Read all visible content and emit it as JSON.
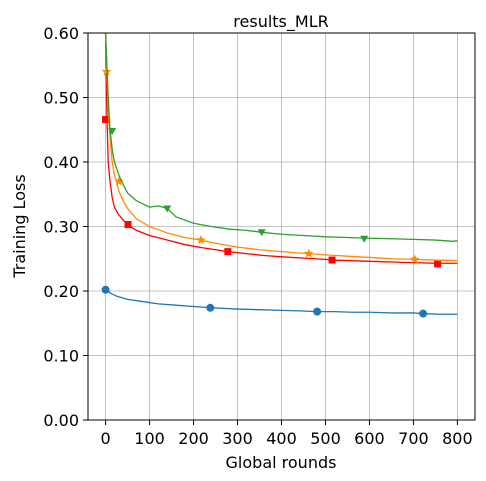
{
  "chart_data": {
    "type": "line",
    "title": "results_MLR",
    "xlabel": "Global rounds",
    "ylabel": "Training Loss",
    "xlim": [
      -40,
      840
    ],
    "ylim": [
      0.0,
      0.6
    ],
    "xticks": [
      0,
      100,
      200,
      300,
      400,
      500,
      600,
      700,
      800
    ],
    "yticks": [
      0.0,
      0.1,
      0.2,
      0.3,
      0.4,
      0.5,
      0.6
    ],
    "ytick_labels": [
      "0.00",
      "0.10",
      "0.20",
      "0.30",
      "0.40",
      "0.50",
      "0.60"
    ],
    "grid": true,
    "series": [
      {
        "color": "#1f77b4",
        "marker": "circle",
        "x": [
          0,
          10,
          25,
          50,
          80,
          120,
          160,
          200,
          240,
          300,
          350,
          400,
          450,
          480,
          520,
          560,
          600,
          650,
          700,
          720,
          760,
          800
        ],
        "y": [
          0.202,
          0.197,
          0.192,
          0.187,
          0.184,
          0.18,
          0.178,
          0.176,
          0.174,
          0.172,
          0.171,
          0.17,
          0.169,
          0.168,
          0.168,
          0.167,
          0.167,
          0.166,
          0.166,
          0.165,
          0.164,
          0.164
        ],
        "markers_x": [
          0,
          238,
          481,
          722
        ],
        "markers_y": [
          0.202,
          0.174,
          0.168,
          0.165
        ]
      },
      {
        "color": "#ff0000",
        "marker": "square",
        "x": [
          0,
          3,
          6,
          10,
          15,
          20,
          30,
          40,
          50,
          70,
          100,
          140,
          180,
          220,
          260,
          280,
          320,
          360,
          400,
          450,
          500,
          515,
          560,
          600,
          650,
          700,
          750,
          800
        ],
        "y": [
          0.6,
          0.47,
          0.4,
          0.37,
          0.345,
          0.33,
          0.318,
          0.31,
          0.303,
          0.294,
          0.286,
          0.279,
          0.272,
          0.267,
          0.263,
          0.261,
          0.258,
          0.255,
          0.253,
          0.251,
          0.249,
          0.248,
          0.247,
          0.246,
          0.245,
          0.244,
          0.243,
          0.243
        ],
        "markers_x": [
          0,
          51,
          278,
          515,
          755
        ],
        "markers_y": [
          0.466,
          0.303,
          0.261,
          0.248,
          0.242
        ]
      },
      {
        "color": "#ff8c00",
        "marker": "star",
        "x": [
          0,
          3,
          6,
          10,
          15,
          20,
          25,
          30,
          40,
          50,
          70,
          100,
          140,
          180,
          215,
          250,
          300,
          350,
          400,
          460,
          500,
          550,
          600,
          650,
          700,
          750,
          800
        ],
        "y": [
          0.6,
          0.54,
          0.48,
          0.44,
          0.4,
          0.38,
          0.37,
          0.355,
          0.34,
          0.328,
          0.312,
          0.3,
          0.29,
          0.283,
          0.279,
          0.274,
          0.268,
          0.264,
          0.261,
          0.258,
          0.256,
          0.254,
          0.252,
          0.25,
          0.249,
          0.248,
          0.247
        ],
        "markers_x": [
          2,
          30,
          217,
          462,
          703
        ],
        "markers_y": [
          0.54,
          0.37,
          0.279,
          0.258,
          0.249
        ]
      },
      {
        "color": "#2ca02c",
        "marker": "triangle-down",
        "x": [
          0,
          3,
          6,
          10,
          15,
          20,
          30,
          40,
          50,
          70,
          100,
          120,
          140,
          160,
          200,
          240,
          280,
          320,
          355,
          400,
          450,
          500,
          550,
          590,
          650,
          700,
          750,
          790,
          800
        ],
        "y": [
          0.6,
          0.55,
          0.5,
          0.45,
          0.42,
          0.4,
          0.38,
          0.365,
          0.352,
          0.34,
          0.33,
          0.332,
          0.328,
          0.315,
          0.305,
          0.3,
          0.296,
          0.294,
          0.291,
          0.288,
          0.286,
          0.284,
          0.283,
          0.282,
          0.281,
          0.28,
          0.279,
          0.277,
          0.278
        ],
        "markers_x": [
          15,
          140,
          355,
          588
        ],
        "markers_y": [
          0.448,
          0.328,
          0.291,
          0.281
        ]
      }
    ]
  }
}
